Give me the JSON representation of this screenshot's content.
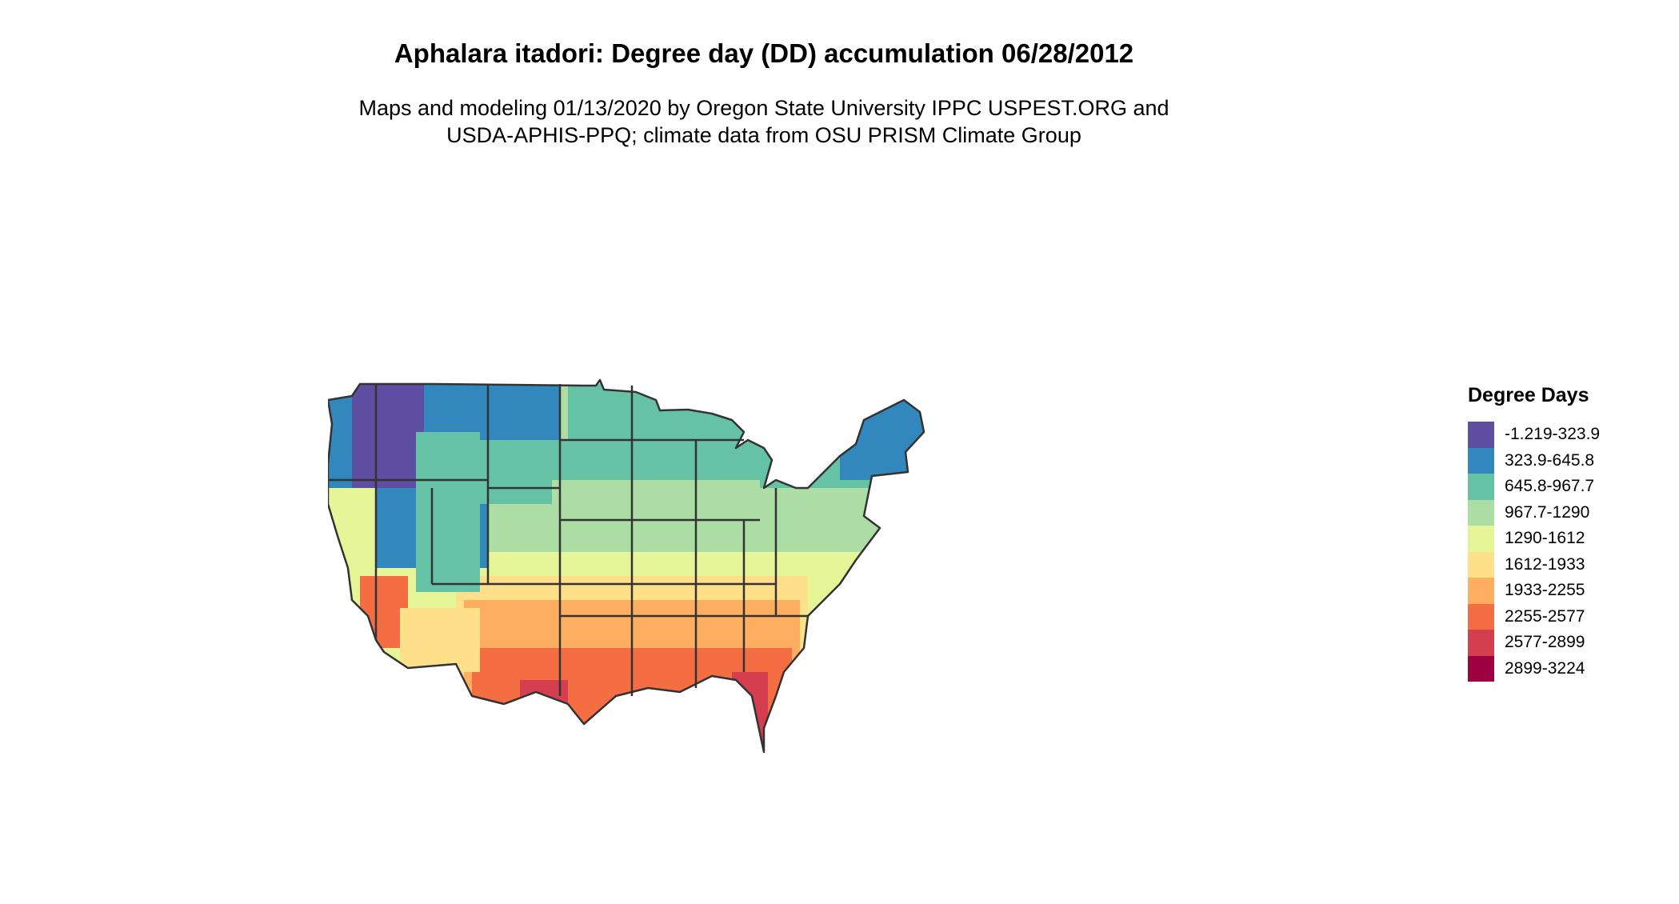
{
  "title": "Aphalara itadori: Degree day (DD) accumulation 06/28/2012",
  "subtitle_line1": "Maps and modeling 01/13/2020 by Oregon State University IPPC USPEST.ORG and",
  "subtitle_line2": "USDA-APHIS-PPQ; climate data from OSU PRISM Climate Group",
  "legend": {
    "title": "Degree Days",
    "items": [
      {
        "label": "-1.219-323.9",
        "color": "#5e4fa2"
      },
      {
        "label": "323.9-645.8",
        "color": "#3288bd"
      },
      {
        "label": "645.8-967.7",
        "color": "#66c2a5"
      },
      {
        "label": "967.7-1290",
        "color": "#abdda4"
      },
      {
        "label": "1290-1612",
        "color": "#e6f598"
      },
      {
        "label": "1612-1933",
        "color": "#fee08b"
      },
      {
        "label": "1933-2255",
        "color": "#fdae61"
      },
      {
        "label": "2255-2577",
        "color": "#f46d43"
      },
      {
        "label": "2577-2899",
        "color": "#d53e4f"
      },
      {
        "label": "2899-3224",
        "color": "#9e0142"
      }
    ]
  },
  "map": {
    "region": "contiguous United States",
    "state_border_color": "#333333"
  }
}
